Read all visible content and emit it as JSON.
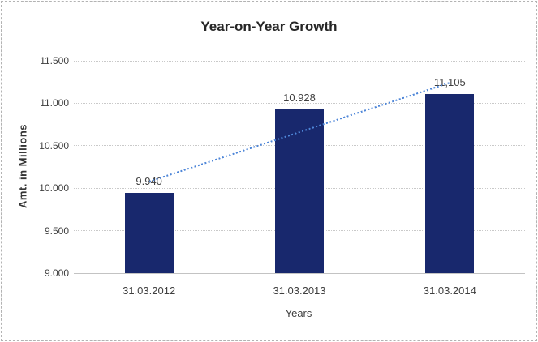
{
  "frame": {
    "border_color": "#b3b3b3"
  },
  "chart_data": {
    "type": "bar",
    "title": "Year-on-Year Growth",
    "xlabel": "Years",
    "ylabel": "Amt. in Millions",
    "categories": [
      "31.03.2012",
      "31.03.2013",
      "31.03.2014"
    ],
    "values": [
      9940,
      10928,
      11105
    ],
    "value_labels": [
      "9.940",
      "10.928",
      "11,105"
    ],
    "ylim": [
      9000,
      11500
    ],
    "ytick_values": [
      9000,
      9500,
      10000,
      10500,
      11000,
      11500
    ],
    "ytick_labels": [
      "9.000",
      "9.500",
      "10.000",
      "10.500",
      "11.000",
      "11.500"
    ],
    "grid": "horizontal",
    "gridline_style": "dotted",
    "legend_position": "none",
    "trendline": {
      "type": "linear",
      "style": "dotted"
    },
    "colors": {
      "bar": "#18286d",
      "trendline": "#4e86d8",
      "gridline": "#c9c9c9",
      "axis_text": "#404040",
      "title_text": "#262626"
    }
  }
}
